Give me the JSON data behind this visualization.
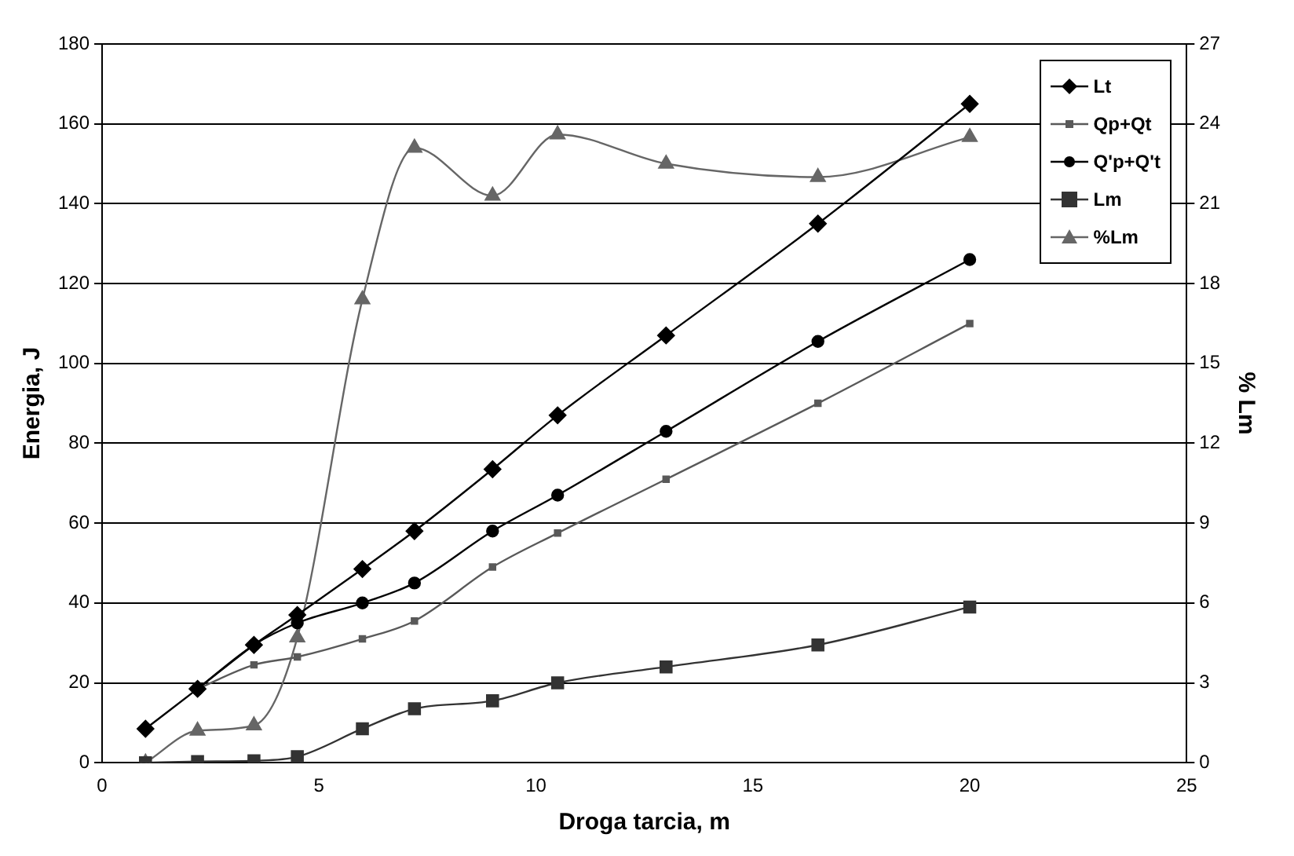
{
  "chart_data": {
    "type": "line",
    "xlabel": "Droga tarcia, m",
    "ylabel": "Energia, J",
    "y2label": "% Lm",
    "x": [
      1,
      2.2,
      3.5,
      4.5,
      6,
      7.2,
      9,
      10.5,
      13,
      16.5,
      20
    ],
    "series": [
      {
        "name": "Lt",
        "color": "#000000",
        "marker": "diamond",
        "values": [
          8.5,
          18.5,
          29.5,
          37,
          48.5,
          58,
          73.5,
          87,
          107,
          135,
          165
        ]
      },
      {
        "name": "Qp+Qt",
        "color": "#595959",
        "marker": "square",
        "values": [
          null,
          18.5,
          24.5,
          26.5,
          31,
          35.5,
          49,
          57.5,
          71,
          90,
          110
        ]
      },
      {
        "name": "Q'p+Q't",
        "color": "#000000",
        "marker": "circle",
        "values": [
          null,
          18.5,
          29.5,
          35,
          40,
          45,
          58,
          67,
          83,
          105.5,
          126
        ]
      },
      {
        "name": "Lm",
        "color": "#333333",
        "marker": "square",
        "values": [
          0,
          0.3,
          0.5,
          1.5,
          8.5,
          13.5,
          15.5,
          20,
          24,
          29.5,
          39
        ]
      },
      {
        "name": "%Lm",
        "color": "#666666",
        "marker": "triangle",
        "axis": "y2",
        "values": [
          0,
          1.2,
          1.4,
          4.7,
          17.4,
          23.1,
          21.3,
          23.6,
          22.5,
          22.0,
          23.5
        ]
      }
    ],
    "xlim": [
      0,
      25
    ],
    "xticks": [
      0,
      5,
      10,
      15,
      20,
      25
    ],
    "ylim": [
      0,
      180
    ],
    "yticks": [
      0,
      20,
      40,
      60,
      80,
      100,
      120,
      140,
      160,
      180
    ],
    "y2lim": [
      0,
      27
    ],
    "y2ticks": [
      0,
      3,
      6,
      9,
      12,
      15,
      18,
      21,
      24,
      27
    ],
    "grid": "y",
    "legend": "top right"
  }
}
